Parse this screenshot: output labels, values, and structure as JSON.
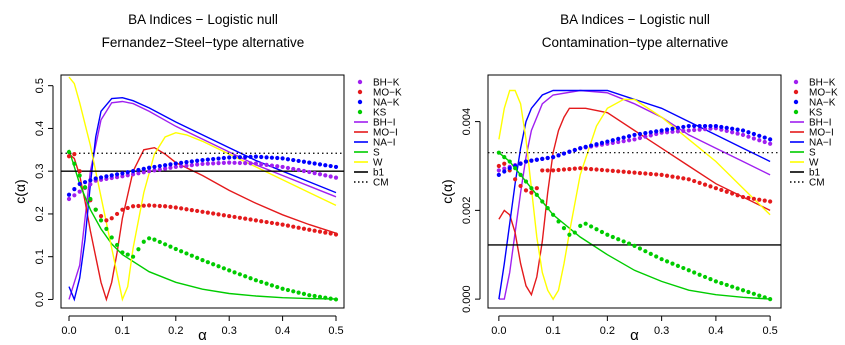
{
  "chart_data": [
    {
      "type": "line",
      "title": "BA Indices − Logistic null",
      "subtitle": "Fernandez−Steel−type alternative",
      "xlabel": "α",
      "ylabel": "c(α)",
      "xlim": [
        -0.015,
        0.515
      ],
      "ylim": [
        -0.02,
        0.525
      ],
      "x_ticks": [
        0.0,
        0.1,
        0.2,
        0.3,
        0.4,
        0.5
      ],
      "x_tick_labels": [
        "0.0",
        "0.1",
        "0.2",
        "0.3",
        "0.4",
        "0.5"
      ],
      "y_ticks": [
        0.0,
        0.1,
        0.2,
        0.3,
        0.4,
        0.5
      ],
      "y_tick_labels": [
        "0.0",
        "0.1",
        "0.2",
        "0.3",
        "0.4",
        "0.5"
      ],
      "legend_position": "right",
      "series": [
        {
          "name": "BH−K",
          "style": "points",
          "color": "#a020f0",
          "x": [
            0.0,
            0.05,
            0.1,
            0.15,
            0.2,
            0.25,
            0.3,
            0.35,
            0.4,
            0.45,
            0.5
          ],
          "y": [
            0.235,
            0.278,
            0.288,
            0.3,
            0.31,
            0.317,
            0.32,
            0.318,
            0.31,
            0.298,
            0.285
          ]
        },
        {
          "name": "MO−K",
          "style": "points",
          "color": "#e41a1c",
          "x": [
            0.0,
            0.01,
            0.02,
            0.03,
            0.04,
            0.05,
            0.06,
            0.07,
            0.08,
            0.09,
            0.1,
            0.12,
            0.15,
            0.18,
            0.2,
            0.25,
            0.3,
            0.35,
            0.4,
            0.45,
            0.5
          ],
          "y": [
            0.335,
            0.34,
            0.3,
            0.262,
            0.232,
            0.21,
            0.195,
            0.185,
            0.19,
            0.2,
            0.21,
            0.218,
            0.22,
            0.218,
            0.215,
            0.205,
            0.195,
            0.185,
            0.175,
            0.163,
            0.152
          ]
        },
        {
          "name": "NA−K",
          "style": "points",
          "color": "#0000ff",
          "x": [
            0.0,
            0.01,
            0.02,
            0.05,
            0.1,
            0.15,
            0.2,
            0.25,
            0.3,
            0.35,
            0.4,
            0.45,
            0.5
          ],
          "y": [
            0.245,
            0.258,
            0.27,
            0.283,
            0.295,
            0.308,
            0.318,
            0.326,
            0.332,
            0.334,
            0.33,
            0.32,
            0.31
          ]
        },
        {
          "name": "KS",
          "style": "points",
          "color": "#00cc00",
          "x": [
            0.0,
            0.02,
            0.04,
            0.06,
            0.08,
            0.1,
            0.12,
            0.14,
            0.15,
            0.16,
            0.2,
            0.25,
            0.3,
            0.35,
            0.4,
            0.45,
            0.5
          ],
          "y": [
            0.345,
            0.29,
            0.235,
            0.185,
            0.145,
            0.11,
            0.1,
            0.135,
            0.143,
            0.14,
            0.118,
            0.092,
            0.068,
            0.045,
            0.025,
            0.01,
            0.0
          ]
        },
        {
          "name": "BH−I",
          "style": "line",
          "color": "#a020f0",
          "x": [
            0.0,
            0.02,
            0.04,
            0.06,
            0.08,
            0.1,
            0.12,
            0.15,
            0.2,
            0.25,
            0.3,
            0.35,
            0.4,
            0.45,
            0.5
          ],
          "y": [
            0.0,
            0.08,
            0.3,
            0.42,
            0.46,
            0.463,
            0.458,
            0.44,
            0.405,
            0.375,
            0.345,
            0.315,
            0.29,
            0.265,
            0.24
          ]
        },
        {
          "name": "MO−I",
          "style": "line",
          "color": "#e41a1c",
          "x": [
            0.0,
            0.01,
            0.02,
            0.03,
            0.04,
            0.05,
            0.06,
            0.07,
            0.08,
            0.09,
            0.1,
            0.12,
            0.14,
            0.16,
            0.18,
            0.2,
            0.25,
            0.3,
            0.35,
            0.4,
            0.45,
            0.5
          ],
          "y": [
            0.34,
            0.33,
            0.29,
            0.23,
            0.16,
            0.1,
            0.04,
            0.0,
            0.04,
            0.11,
            0.19,
            0.3,
            0.35,
            0.355,
            0.34,
            0.32,
            0.29,
            0.255,
            0.225,
            0.198,
            0.175,
            0.155
          ]
        },
        {
          "name": "NA−I",
          "style": "line",
          "color": "#0000ff",
          "x": [
            0.0,
            0.01,
            0.02,
            0.03,
            0.04,
            0.05,
            0.06,
            0.08,
            0.1,
            0.12,
            0.15,
            0.2,
            0.25,
            0.3,
            0.35,
            0.4,
            0.45,
            0.5
          ],
          "y": [
            0.03,
            0.0,
            0.05,
            0.14,
            0.27,
            0.38,
            0.44,
            0.47,
            0.472,
            0.465,
            0.448,
            0.415,
            0.385,
            0.355,
            0.325,
            0.3,
            0.275,
            0.25
          ]
        },
        {
          "name": "S",
          "style": "line",
          "color": "#00cc00",
          "x": [
            0.0,
            0.02,
            0.04,
            0.06,
            0.08,
            0.1,
            0.15,
            0.2,
            0.25,
            0.3,
            0.35,
            0.4,
            0.45,
            0.5
          ],
          "y": [
            0.35,
            0.27,
            0.21,
            0.165,
            0.13,
            0.105,
            0.065,
            0.04,
            0.024,
            0.014,
            0.008,
            0.004,
            0.002,
            0.001
          ]
        },
        {
          "name": "W",
          "style": "line",
          "color": "#ffff00",
          "x": [
            0.0,
            0.01,
            0.02,
            0.04,
            0.06,
            0.08,
            0.09,
            0.1,
            0.11,
            0.12,
            0.14,
            0.16,
            0.18,
            0.2,
            0.22,
            0.25,
            0.3,
            0.35,
            0.4,
            0.45,
            0.5
          ],
          "y": [
            0.52,
            0.505,
            0.46,
            0.36,
            0.24,
            0.12,
            0.06,
            0.0,
            0.03,
            0.12,
            0.25,
            0.34,
            0.38,
            0.39,
            0.385,
            0.37,
            0.34,
            0.31,
            0.28,
            0.25,
            0.22
          ]
        },
        {
          "name": "b1",
          "style": "hline",
          "color": "#000000",
          "dash": "solid",
          "y": [
            0.3
          ]
        },
        {
          "name": "CM",
          "style": "hline",
          "color": "#000000",
          "dash": "dotted",
          "y": [
            0.342
          ]
        }
      ]
    },
    {
      "type": "line",
      "title": "BA Indices − Logistic null",
      "subtitle": "Contamination−type alternative",
      "xlabel": "α",
      "ylabel": "c(α)",
      "xlim": [
        -0.02,
        0.52
      ],
      "ylim": [
        -0.0002,
        0.00505
      ],
      "x_ticks": [
        0.0,
        0.1,
        0.2,
        0.3,
        0.4,
        0.5
      ],
      "x_tick_labels": [
        "0.0",
        "0.1",
        "0.2",
        "0.3",
        "0.4",
        "0.5"
      ],
      "y_ticks": [
        0.0,
        0.002,
        0.004
      ],
      "y_tick_labels": [
        "0.000",
        "0.002",
        "0.004"
      ],
      "legend_position": "right",
      "series": [
        {
          "name": "BH−K",
          "style": "points",
          "color": "#a020f0",
          "x": [
            0.0,
            0.05,
            0.1,
            0.15,
            0.2,
            0.25,
            0.3,
            0.35,
            0.4,
            0.45,
            0.5
          ],
          "y": [
            0.0029,
            0.0031,
            0.0032,
            0.0034,
            0.0035,
            0.0036,
            0.00375,
            0.0038,
            0.00385,
            0.0037,
            0.0035
          ]
        },
        {
          "name": "MO−K",
          "style": "points",
          "color": "#e41a1c",
          "x": [
            0.0,
            0.01,
            0.02,
            0.03,
            0.04,
            0.05,
            0.06,
            0.07,
            0.08,
            0.1,
            0.15,
            0.2,
            0.25,
            0.3,
            0.35,
            0.4,
            0.45,
            0.5
          ],
          "y": [
            0.003,
            0.00305,
            0.0029,
            0.0027,
            0.00255,
            0.00245,
            0.0024,
            0.0025,
            0.0029,
            0.0029,
            0.00295,
            0.0029,
            0.00285,
            0.0028,
            0.0027,
            0.0025,
            0.0023,
            0.0022
          ]
        },
        {
          "name": "NA−K",
          "style": "points",
          "color": "#0000ff",
          "x": [
            0.0,
            0.02,
            0.05,
            0.1,
            0.15,
            0.2,
            0.25,
            0.3,
            0.35,
            0.4,
            0.45,
            0.5
          ],
          "y": [
            0.0028,
            0.00295,
            0.0031,
            0.0032,
            0.0034,
            0.00355,
            0.0037,
            0.0038,
            0.0039,
            0.0039,
            0.0038,
            0.0036
          ]
        },
        {
          "name": "KS",
          "style": "points",
          "color": "#00cc00",
          "x": [
            0.0,
            0.02,
            0.04,
            0.06,
            0.08,
            0.1,
            0.12,
            0.13,
            0.14,
            0.15,
            0.16,
            0.2,
            0.25,
            0.3,
            0.35,
            0.4,
            0.45,
            0.5
          ],
          "y": [
            0.0033,
            0.0031,
            0.0028,
            0.0025,
            0.0022,
            0.0019,
            0.0016,
            0.00145,
            0.0015,
            0.00165,
            0.0017,
            0.00145,
            0.0012,
            0.0009,
            0.00065,
            0.0004,
            0.0002,
            0.0
          ]
        },
        {
          "name": "BH−I",
          "style": "line",
          "color": "#a020f0",
          "x": [
            0.0,
            0.01,
            0.02,
            0.03,
            0.04,
            0.05,
            0.06,
            0.08,
            0.1,
            0.15,
            0.2,
            0.25,
            0.3,
            0.35,
            0.4,
            0.45,
            0.5
          ],
          "y": [
            0.0,
            0.0,
            0.0006,
            0.0015,
            0.0024,
            0.0032,
            0.0038,
            0.0044,
            0.0046,
            0.0047,
            0.00465,
            0.0044,
            0.0041,
            0.0037,
            0.0034,
            0.0031,
            0.0028
          ]
        },
        {
          "name": "MO−I",
          "style": "line",
          "color": "#e41a1c",
          "x": [
            0.0,
            0.01,
            0.02,
            0.03,
            0.04,
            0.05,
            0.06,
            0.07,
            0.08,
            0.09,
            0.1,
            0.11,
            0.12,
            0.13,
            0.14,
            0.15,
            0.16,
            0.2,
            0.25,
            0.3,
            0.35,
            0.4,
            0.45,
            0.5
          ],
          "y": [
            0.0018,
            0.002,
            0.0019,
            0.0015,
            0.0008,
            0.0003,
            0.0001,
            0.0005,
            0.0013,
            0.0024,
            0.0033,
            0.0038,
            0.0041,
            0.0043,
            0.0043,
            0.0043,
            0.0043,
            0.0042,
            0.0038,
            0.0034,
            0.003,
            0.0026,
            0.0023,
            0.002
          ]
        },
        {
          "name": "NA−I",
          "style": "line",
          "color": "#0000ff",
          "x": [
            0.0,
            0.01,
            0.02,
            0.03,
            0.04,
            0.05,
            0.06,
            0.08,
            0.1,
            0.15,
            0.2,
            0.25,
            0.3,
            0.35,
            0.4,
            0.45,
            0.5
          ],
          "y": [
            0.0,
            0.0008,
            0.0017,
            0.0026,
            0.0034,
            0.004,
            0.0043,
            0.0046,
            0.0047,
            0.0047,
            0.0047,
            0.0045,
            0.0043,
            0.004,
            0.0037,
            0.0034,
            0.0031
          ]
        },
        {
          "name": "S",
          "style": "line",
          "color": "#00cc00",
          "x": [
            0.0,
            0.02,
            0.04,
            0.06,
            0.08,
            0.1,
            0.15,
            0.2,
            0.25,
            0.3,
            0.35,
            0.4,
            0.45,
            0.5
          ],
          "y": [
            0.0033,
            0.0031,
            0.0028,
            0.0025,
            0.0022,
            0.0019,
            0.0014,
            0.001,
            0.00065,
            0.0004,
            0.0002,
            0.0001,
            4e-05,
            0.0
          ]
        },
        {
          "name": "W",
          "style": "line",
          "color": "#ffff00",
          "x": [
            0.0,
            0.01,
            0.02,
            0.03,
            0.04,
            0.05,
            0.06,
            0.07,
            0.08,
            0.09,
            0.1,
            0.11,
            0.12,
            0.13,
            0.15,
            0.18,
            0.2,
            0.23,
            0.25,
            0.3,
            0.35,
            0.4,
            0.45,
            0.5
          ],
          "y": [
            0.0036,
            0.0043,
            0.0047,
            0.0047,
            0.0044,
            0.0036,
            0.0025,
            0.0014,
            0.0006,
            0.0002,
            0.0,
            0.0002,
            0.0008,
            0.0015,
            0.0028,
            0.0039,
            0.0043,
            0.0045,
            0.0045,
            0.0041,
            0.0036,
            0.0031,
            0.0025,
            0.0019
          ]
        },
        {
          "name": "b1",
          "style": "hline",
          "color": "#000000",
          "dash": "solid",
          "y": [
            0.00122
          ]
        },
        {
          "name": "CM",
          "style": "hline",
          "color": "#000000",
          "dash": "dotted",
          "y": [
            0.0033
          ]
        }
      ]
    }
  ]
}
